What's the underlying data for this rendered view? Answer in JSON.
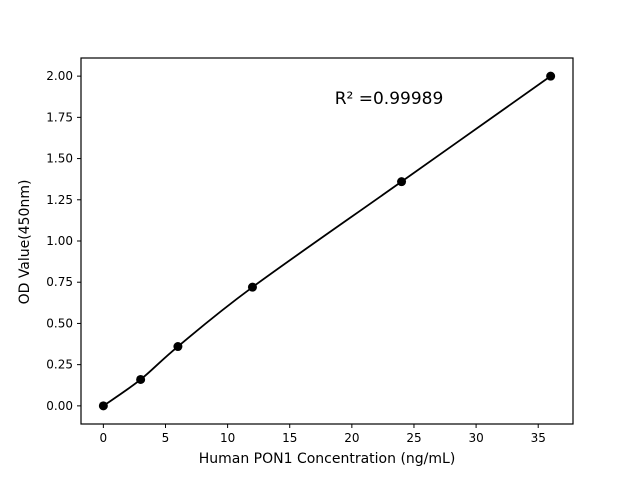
{
  "chart_data": {
    "type": "scatter",
    "title": "",
    "xlabel": "Human PON1 Concentration (ng/mL)",
    "ylabel": "OD Value(450nm)",
    "annotation": "R² =0.99989",
    "r_squared": 0.99989,
    "x": [
      0,
      3,
      6,
      12,
      24,
      36
    ],
    "y": [
      0.0,
      0.16,
      0.36,
      0.72,
      1.36,
      2.0
    ],
    "fit_line": true,
    "xticks": [
      0,
      5,
      10,
      15,
      20,
      25,
      30,
      35
    ],
    "yticks": [
      0.0,
      0.25,
      0.5,
      0.75,
      1.0,
      1.25,
      1.5,
      1.75,
      2.0
    ],
    "ytick_labels": [
      "0.00",
      "0.25",
      "0.50",
      "0.75",
      "1.00",
      "1.25",
      "1.50",
      "1.75",
      "2.00"
    ],
    "xlim": [
      -1.8,
      37.8
    ],
    "ylim": [
      -0.11,
      2.11
    ],
    "grid": false,
    "legend": null,
    "colors": {
      "background": "#ffffff",
      "frame": "#000000",
      "line": "#000000",
      "marker": "#000000",
      "text": "#000000"
    }
  }
}
